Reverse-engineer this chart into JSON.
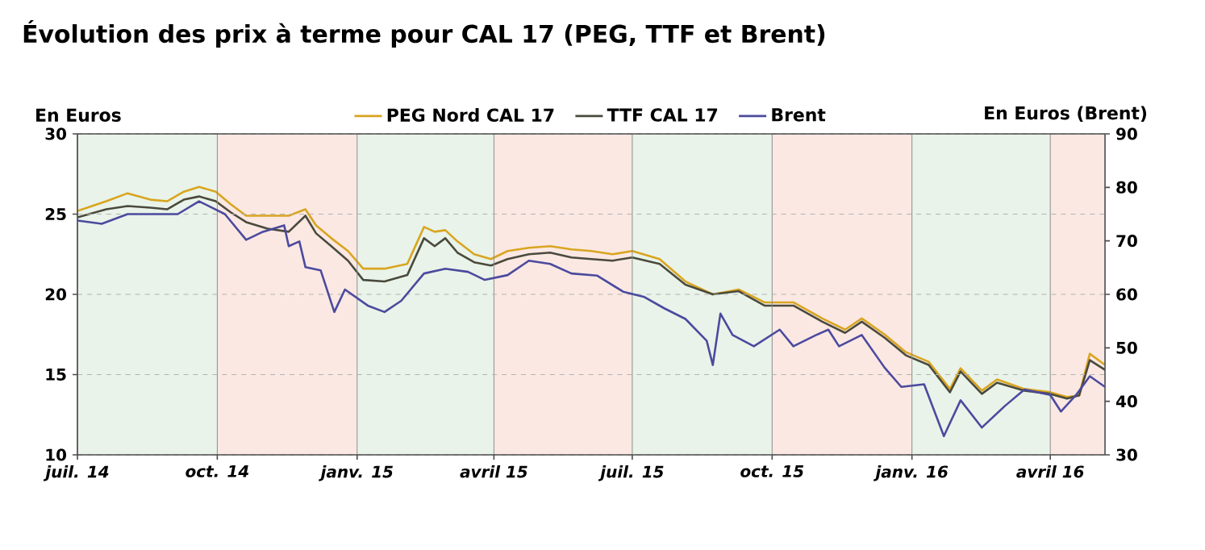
{
  "chart_data": {
    "type": "line",
    "title": "Évolution des prix à terme pour CAL 17 (PEG, TTF et Brent)",
    "ylabel": "En Euros",
    "y2label": "En Euros (Brent)",
    "xlim": [
      "2014-07-01",
      "2016-05-07"
    ],
    "xticks": [
      {
        "value": "2014-07-01",
        "label": "juil. 14"
      },
      {
        "value": "2014-10-01",
        "label": "oct. 14"
      },
      {
        "value": "2015-01-01",
        "label": "janv. 15"
      },
      {
        "value": "2015-04-01",
        "label": "avril 15"
      },
      {
        "value": "2015-07-01",
        "label": "juil. 15"
      },
      {
        "value": "2015-10-01",
        "label": "oct. 15"
      },
      {
        "value": "2016-01-01",
        "label": "janv. 16"
      },
      {
        "value": "2016-04-01",
        "label": "avril 16"
      }
    ],
    "ylim": [
      10,
      30
    ],
    "yticks": [
      10,
      15,
      20,
      25,
      30
    ],
    "y2lim": [
      30,
      90
    ],
    "y2ticks": [
      30,
      40,
      50,
      60,
      70,
      80,
      90
    ],
    "grid": true,
    "legend": "top",
    "marker": "none",
    "bands": [
      {
        "axis": "x",
        "from": "2014-07-01",
        "to": "2014-10-01",
        "color": "#e9f3e9"
      },
      {
        "axis": "x",
        "from": "2014-10-01",
        "to": "2015-01-01",
        "color": "#fbe8e3"
      },
      {
        "axis": "x",
        "from": "2015-01-01",
        "to": "2015-04-01",
        "color": "#e9f3e9"
      },
      {
        "axis": "x",
        "from": "2015-04-01",
        "to": "2015-07-01",
        "color": "#fbe8e3"
      },
      {
        "axis": "x",
        "from": "2015-07-01",
        "to": "2015-10-01",
        "color": "#e9f3e9"
      },
      {
        "axis": "x",
        "from": "2015-10-01",
        "to": "2016-01-01",
        "color": "#fbe8e3"
      },
      {
        "axis": "x",
        "from": "2016-01-01",
        "to": "2016-04-01",
        "color": "#e9f3e9"
      },
      {
        "axis": "x",
        "from": "2016-04-01",
        "to": "2016-05-07",
        "color": "#fbe8e3"
      }
    ],
    "series": [
      {
        "name": "PEG Nord CAL 17",
        "color": "#d9a520",
        "x": [
          "2014-07-01",
          "2014-07-20",
          "2014-08-03",
          "2014-08-18",
          "2014-08-29",
          "2014-09-09",
          "2014-09-19",
          "2014-09-30",
          "2014-10-10",
          "2014-10-20",
          "2014-11-03",
          "2014-11-17",
          "2014-11-28",
          "2014-12-05",
          "2014-12-15",
          "2014-12-26",
          "2015-01-05",
          "2015-01-19",
          "2015-02-03",
          "2015-02-14",
          "2015-02-21",
          "2015-02-28",
          "2015-03-08",
          "2015-03-19",
          "2015-03-30",
          "2015-04-10",
          "2015-04-24",
          "2015-05-08",
          "2015-05-22",
          "2015-06-04",
          "2015-06-18",
          "2015-07-01",
          "2015-07-19",
          "2015-08-05",
          "2015-08-23",
          "2015-09-09",
          "2015-09-26",
          "2015-10-15",
          "2015-11-03",
          "2015-11-18",
          "2015-11-29",
          "2015-12-14",
          "2015-12-28",
          "2016-01-12",
          "2016-01-26",
          "2016-02-02",
          "2016-02-16",
          "2016-02-26",
          "2016-03-15",
          "2016-04-01",
          "2016-04-12",
          "2016-04-20",
          "2016-04-27",
          "2016-05-07"
        ],
        "values": [
          25.2,
          25.8,
          26.3,
          25.9,
          25.8,
          26.4,
          26.7,
          26.4,
          25.6,
          24.9,
          24.9,
          24.9,
          25.3,
          24.3,
          23.5,
          22.7,
          21.6,
          21.6,
          21.9,
          24.2,
          23.9,
          24.0,
          23.3,
          22.5,
          22.2,
          22.7,
          22.9,
          23.0,
          22.8,
          22.7,
          22.5,
          22.7,
          22.2,
          20.8,
          20.0,
          20.3,
          19.5,
          19.5,
          18.5,
          17.8,
          18.5,
          17.5,
          16.4,
          15.8,
          14.1,
          15.4,
          14.0,
          14.7,
          14.1,
          13.9,
          13.6,
          13.7,
          16.3,
          15.6
        ]
      },
      {
        "name": "TTF CAL 17",
        "color": "#4a4a3c",
        "x": [
          "2014-07-01",
          "2014-07-20",
          "2014-08-03",
          "2014-08-18",
          "2014-08-29",
          "2014-09-09",
          "2014-09-19",
          "2014-09-30",
          "2014-10-10",
          "2014-10-20",
          "2014-11-03",
          "2014-11-17",
          "2014-11-28",
          "2014-12-05",
          "2014-12-15",
          "2014-12-26",
          "2015-01-05",
          "2015-01-19",
          "2015-02-03",
          "2015-02-14",
          "2015-02-21",
          "2015-02-28",
          "2015-03-08",
          "2015-03-19",
          "2015-03-30",
          "2015-04-10",
          "2015-04-24",
          "2015-05-08",
          "2015-05-22",
          "2015-06-04",
          "2015-06-18",
          "2015-07-01",
          "2015-07-19",
          "2015-08-05",
          "2015-08-23",
          "2015-09-09",
          "2015-09-26",
          "2015-10-15",
          "2015-11-03",
          "2015-11-18",
          "2015-11-29",
          "2015-12-14",
          "2015-12-28",
          "2016-01-12",
          "2016-01-26",
          "2016-02-02",
          "2016-02-16",
          "2016-02-26",
          "2016-03-15",
          "2016-04-01",
          "2016-04-12",
          "2016-04-20",
          "2016-04-27",
          "2016-05-07"
        ],
        "values": [
          24.8,
          25.3,
          25.5,
          25.4,
          25.3,
          25.9,
          26.1,
          25.8,
          25.1,
          24.5,
          24.1,
          23.9,
          24.9,
          23.8,
          23.0,
          22.1,
          20.9,
          20.8,
          21.2,
          23.5,
          23.0,
          23.5,
          22.6,
          22.0,
          21.8,
          22.2,
          22.5,
          22.6,
          22.3,
          22.2,
          22.1,
          22.3,
          21.9,
          20.6,
          20.0,
          20.2,
          19.3,
          19.3,
          18.3,
          17.6,
          18.3,
          17.3,
          16.2,
          15.6,
          13.9,
          15.2,
          13.8,
          14.5,
          14.0,
          13.8,
          13.5,
          13.7,
          15.9,
          15.3
        ]
      },
      {
        "name": "Brent",
        "color": "#4b4a9e",
        "axis": "y2",
        "x": [
          "2014-07-01",
          "2014-07-17",
          "2014-08-03",
          "2014-08-25",
          "2014-09-05",
          "2014-09-19",
          "2014-10-06",
          "2014-10-20",
          "2014-10-31",
          "2014-11-14",
          "2014-11-17",
          "2014-11-24",
          "2014-11-28",
          "2014-12-08",
          "2014-12-17",
          "2014-12-24",
          "2015-01-08",
          "2015-01-19",
          "2015-01-30",
          "2015-02-14",
          "2015-02-28",
          "2015-03-15",
          "2015-03-26",
          "2015-04-10",
          "2015-04-24",
          "2015-05-08",
          "2015-05-22",
          "2015-06-08",
          "2015-06-25",
          "2015-07-09",
          "2015-07-22",
          "2015-08-05",
          "2015-08-19",
          "2015-08-23",
          "2015-08-28",
          "2015-09-05",
          "2015-09-19",
          "2015-10-06",
          "2015-10-15",
          "2015-10-30",
          "2015-11-07",
          "2015-11-14",
          "2015-11-29",
          "2015-12-14",
          "2015-12-25",
          "2016-01-09",
          "2016-01-22",
          "2016-02-02",
          "2016-02-16",
          "2016-03-02",
          "2016-03-15",
          "2016-04-01",
          "2016-04-08",
          "2016-04-18",
          "2016-04-27",
          "2016-05-07"
        ],
        "values": [
          73.8,
          73.2,
          75.0,
          75.0,
          75.0,
          77.4,
          75.0,
          70.2,
          71.7,
          72.9,
          69.0,
          69.9,
          65.1,
          64.5,
          56.7,
          60.9,
          57.9,
          56.7,
          58.8,
          63.9,
          64.8,
          64.2,
          62.7,
          63.6,
          66.3,
          65.7,
          63.9,
          63.5,
          60.5,
          59.5,
          57.4,
          55.4,
          51.3,
          46.8,
          56.4,
          52.4,
          50.3,
          53.4,
          50.3,
          52.4,
          53.4,
          50.3,
          52.4,
          46.3,
          42.7,
          43.2,
          33.5,
          40.2,
          35.1,
          39.1,
          42.2,
          41.2,
          38.1,
          41.2,
          44.7,
          42.7
        ]
      }
    ]
  }
}
